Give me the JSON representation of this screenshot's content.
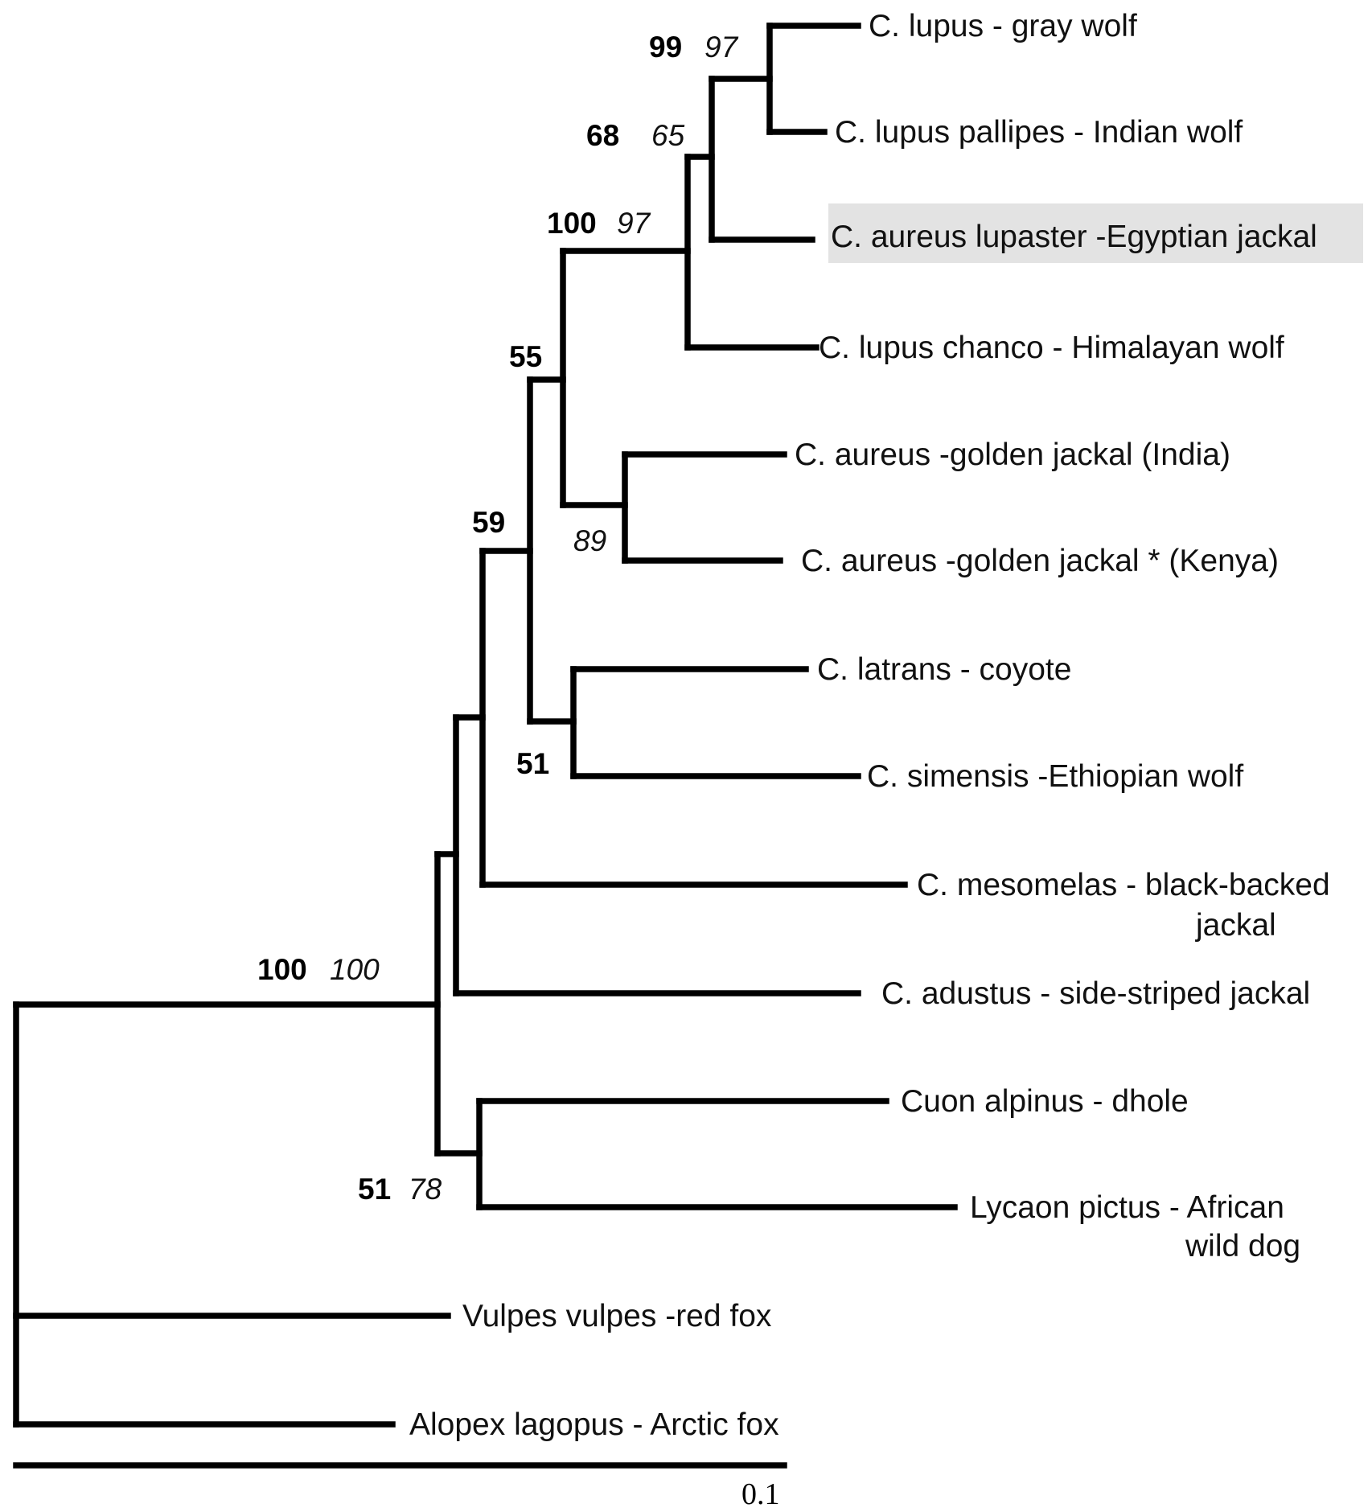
{
  "taxa": {
    "lupus": "C. lupus - gray wolf",
    "pallipes": "C. lupus pallipes - Indian wolf",
    "lupaster": "C. aureus lupaster -Egyptian jackal",
    "chanco": "C. lupus chanco - Himalayan wolf",
    "aureus_india": "C. aureus -golden jackal  (India)",
    "aureus_kenya": "C. aureus -golden jackal * (Kenya)",
    "latrans": "C. latrans - coyote",
    "simensis": "C. simensis -Ethiopian wolf",
    "mesomelas_1": "C. mesomelas - black-backed",
    "mesomelas_2": "jackal",
    "adustus": "C. adustus - side-striped jackal",
    "cuon": "Cuon alpinus - dhole",
    "lycaon_1": "Lycaon pictus - African",
    "lycaon_2": "wild dog",
    "vulpes": "Vulpes vulpes -red fox",
    "alopex": "Alopex lagopus - Arctic fox"
  },
  "support": {
    "n1_bold": "99",
    "n1_ital": "97",
    "n2_bold": "68",
    "n2_ital": "65",
    "n3_bold": "100",
    "n3_ital": "97",
    "n4_bold": "55",
    "n5_ital": "89",
    "n6_bold": "59",
    "n7_bold": "51",
    "n8_bold": "100",
    "n8_ital": "100",
    "n9_bold": "51",
    "n9_ital": "78"
  },
  "scale_bar": {
    "label": "0.1"
  },
  "highlighted_taxon": "C. aureus lupaster -Egyptian jackal"
}
